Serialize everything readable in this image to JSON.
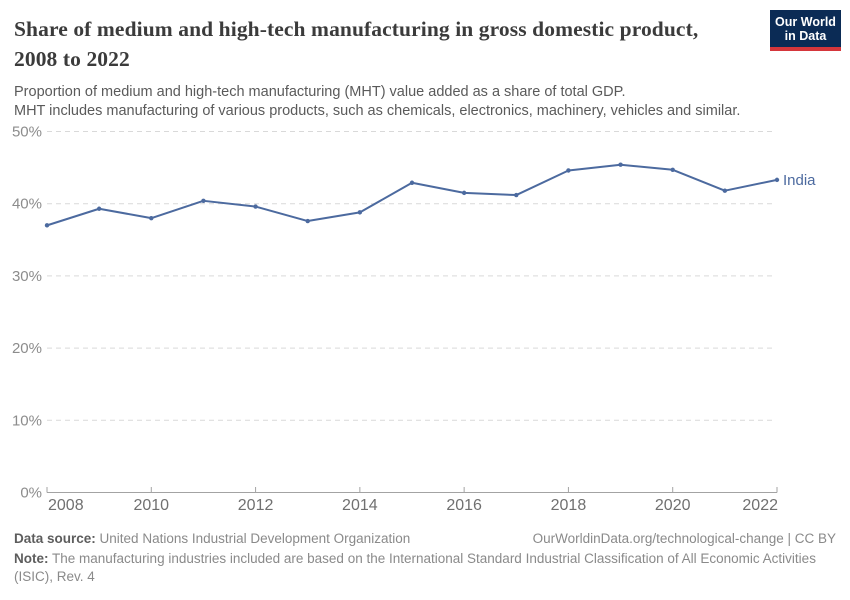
{
  "logo": {
    "line1": "Our World",
    "line2": "in Data",
    "bg_color": "#0b2b55",
    "accent_color": "#d5363b"
  },
  "chart_data": {
    "type": "line",
    "title": "Share of medium and high-tech manufacturing in gross domestic product, 2008 to 2022",
    "subtitle_lines": [
      "Proportion of medium and high-tech manufacturing (MHT) value added as a share of total GDP.",
      "MHT includes manufacturing of various products, such as chemicals, electronics, machinery, vehicles and similar."
    ],
    "x": [
      2008,
      2009,
      2010,
      2011,
      2012,
      2013,
      2014,
      2015,
      2016,
      2017,
      2018,
      2019,
      2020,
      2021,
      2022
    ],
    "series": [
      {
        "name": "India",
        "color": "#4c6a9f",
        "values": [
          37.0,
          39.3,
          38.0,
          40.4,
          39.6,
          37.6,
          38.8,
          42.9,
          41.5,
          41.2,
          44.6,
          45.4,
          44.7,
          41.8,
          43.3
        ]
      }
    ],
    "xlabel": "",
    "ylabel": "",
    "ylim": [
      0,
      50
    ],
    "yticks": [
      {
        "v": 0,
        "label": "0%"
      },
      {
        "v": 10,
        "label": "10%"
      },
      {
        "v": 20,
        "label": "20%"
      },
      {
        "v": 30,
        "label": "30%"
      },
      {
        "v": 40,
        "label": "40%"
      },
      {
        "v": 50,
        "label": "50%"
      }
    ],
    "xticks": [
      {
        "v": 2008,
        "label": "2008"
      },
      {
        "v": 2010,
        "label": "2010"
      },
      {
        "v": 2012,
        "label": "2012"
      },
      {
        "v": 2014,
        "label": "2014"
      },
      {
        "v": 2016,
        "label": "2016"
      },
      {
        "v": 2018,
        "label": "2018"
      },
      {
        "v": 2020,
        "label": "2020"
      },
      {
        "v": 2022,
        "label": "2022"
      }
    ],
    "grid": "horizontal-dashed",
    "legend_position": "end-of-line-label"
  },
  "footer": {
    "datasource_label": "Data source:",
    "datasource": "United Nations Industrial Development Organization",
    "link": "OurWorldinData.org/technological-change | CC BY",
    "note_label": "Note:",
    "note": "The manufacturing industries included are based on the International Standard Industrial Classification of All Economic Activities (ISIC), Rev. 4"
  },
  "colors": {
    "line": "#4c6a9f",
    "title": "#3b3b3b",
    "subtitle": "#5a5a5a",
    "gridline": "#d9d9d9",
    "axis": "#a3a3a3",
    "y_tick_label": "#8c8c8c",
    "x_tick_label": "#707070"
  }
}
